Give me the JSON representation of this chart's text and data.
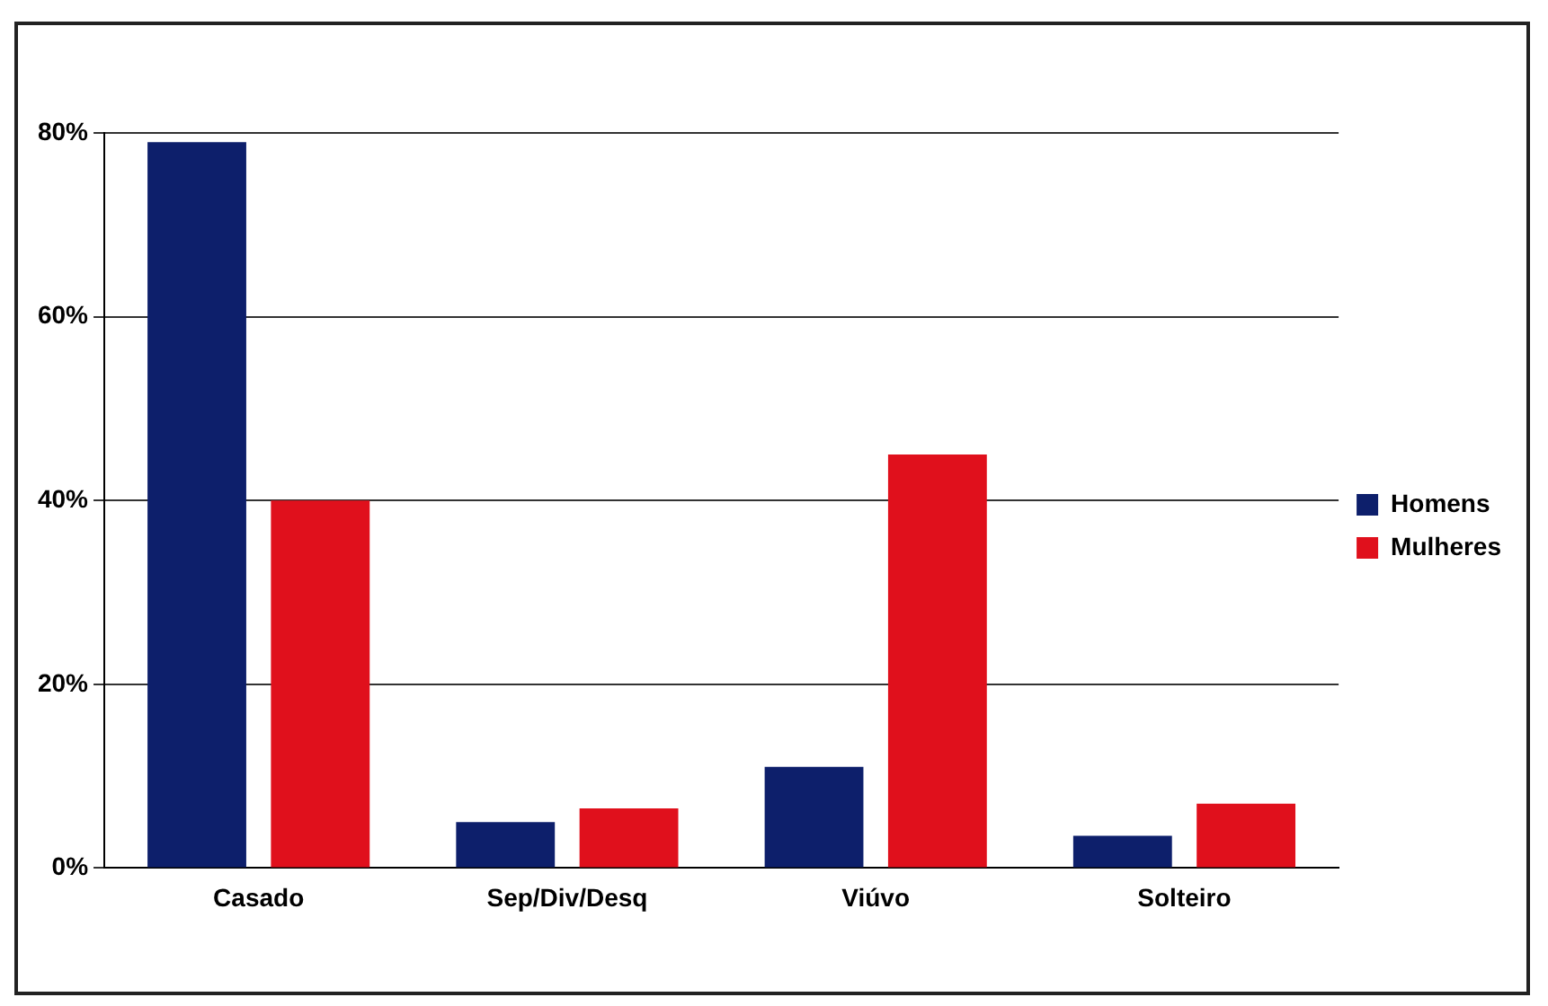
{
  "chart_data": {
    "type": "bar",
    "categories": [
      "Casado",
      "Sep/Div/Desq",
      "Viúvo",
      "Solteiro"
    ],
    "series": [
      {
        "name": "Homens",
        "color": "#0d1f6b",
        "values": [
          79,
          5,
          11,
          3.5
        ]
      },
      {
        "name": "Mulheres",
        "color": "#e0101c",
        "values": [
          40,
          6.5,
          45,
          7
        ]
      }
    ],
    "ylim": [
      0,
      80
    ],
    "yticks": [
      {
        "value": 0,
        "label": "0%"
      },
      {
        "value": 20,
        "label": "20%"
      },
      {
        "value": 40,
        "label": "40%"
      },
      {
        "value": 60,
        "label": "60%"
      },
      {
        "value": 80,
        "label": "80%"
      }
    ],
    "grid": "y",
    "legend": "right"
  }
}
